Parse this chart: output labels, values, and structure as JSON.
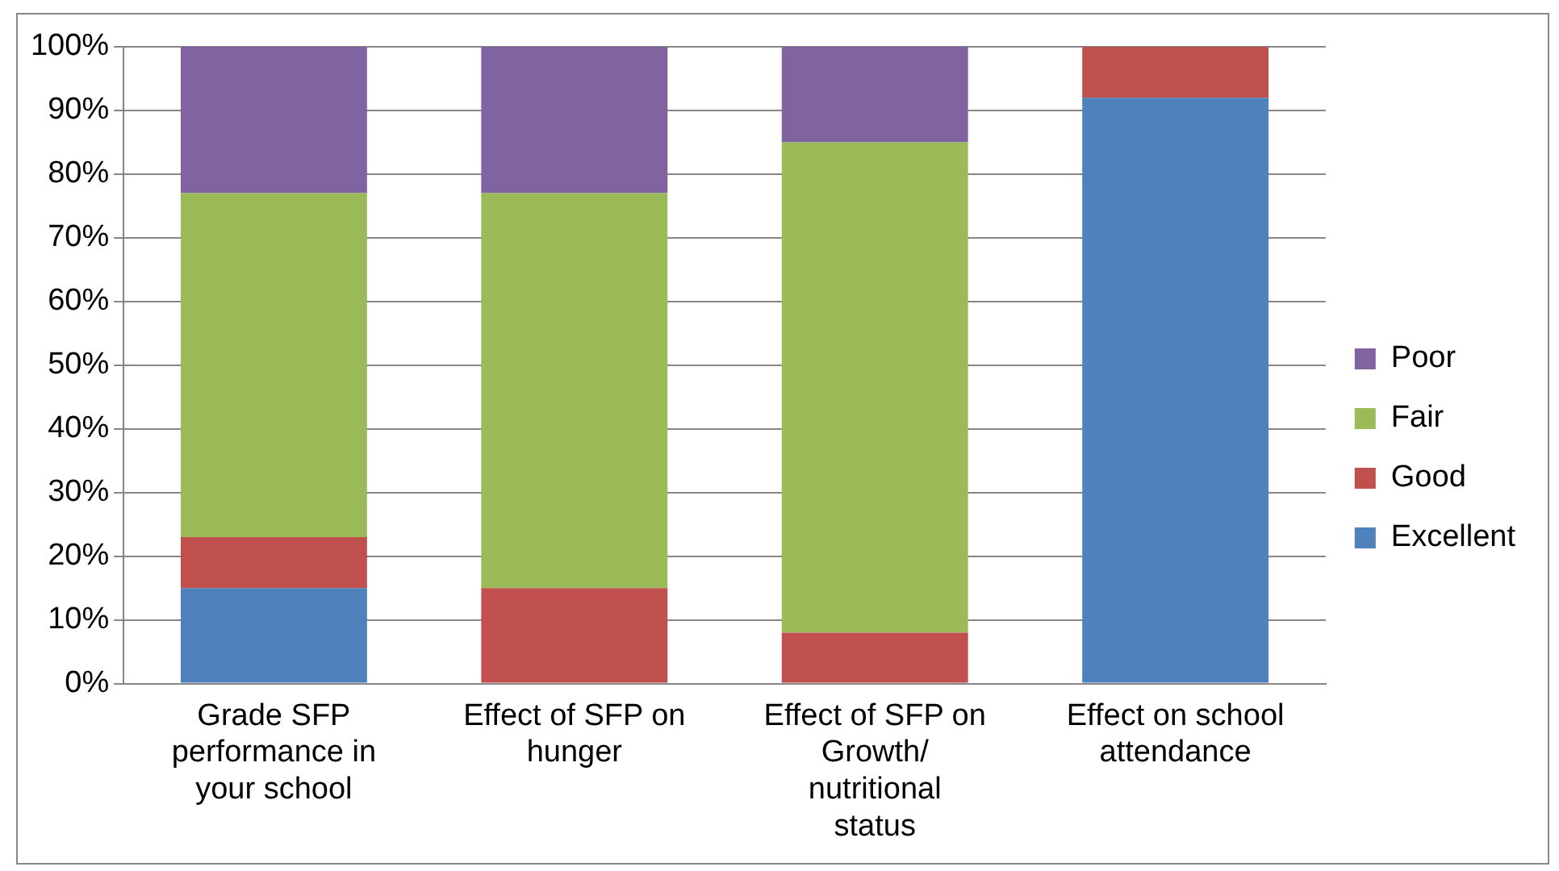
{
  "chart_data": {
    "type": "bar",
    "stacked": true,
    "categories": [
      "Grade SFP performance in your school",
      "Effect of SFP on hunger",
      "Effect of SFP on Growth/ nutritional status",
      "Effect on school attendance"
    ],
    "series": [
      {
        "name": "Excellent",
        "color": "#4f81bd",
        "values": [
          15,
          0,
          0,
          92
        ]
      },
      {
        "name": "Good",
        "color": "#c0504d",
        "values": [
          8,
          15,
          8,
          8
        ]
      },
      {
        "name": "Fair",
        "color": "#9bbb59",
        "values": [
          54,
          62,
          77,
          0
        ]
      },
      {
        "name": "Poor",
        "color": "#8064a2",
        "values": [
          23,
          23,
          15,
          0
        ]
      }
    ],
    "ylim": [
      0,
      100
    ],
    "yticks": [
      {
        "value": 0,
        "label": "0%"
      },
      {
        "value": 10,
        "label": "10%"
      },
      {
        "value": 20,
        "label": "20%"
      },
      {
        "value": 30,
        "label": "30%"
      },
      {
        "value": 40,
        "label": "40%"
      },
      {
        "value": 50,
        "label": "50%"
      },
      {
        "value": 60,
        "label": "60%"
      },
      {
        "value": 70,
        "label": "70%"
      },
      {
        "value": 80,
        "label": "80%"
      },
      {
        "value": 90,
        "label": "90%"
      },
      {
        "value": 100,
        "label": "100%"
      }
    ],
    "grid": "y",
    "legend": "right"
  }
}
